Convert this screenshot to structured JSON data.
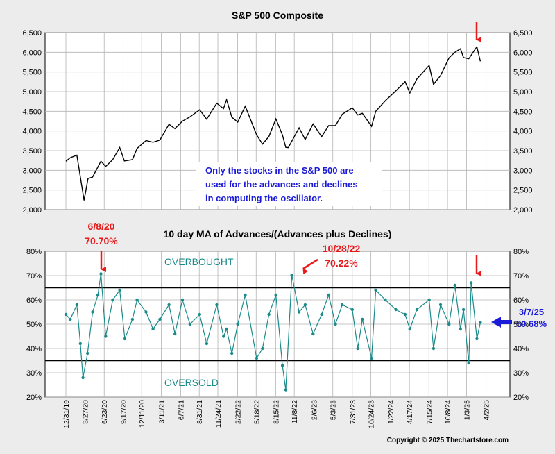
{
  "chart_data": [
    {
      "type": "line",
      "title": "S&P 500 Composite",
      "ylim": [
        2000,
        6500
      ],
      "yticks": [
        "2,000",
        "2,500",
        "3,000",
        "3,500",
        "4,000",
        "4,500",
        "5,000",
        "5,500",
        "6,000",
        "6,500"
      ],
      "ytick_values": [
        2000,
        2500,
        3000,
        3500,
        4000,
        4500,
        5000,
        5500,
        6000,
        6500
      ],
      "xlim": [
        "2019-12-31",
        "2025-03-31"
      ],
      "grid": true,
      "series": [
        {
          "x": [
            "2019-12-31",
            "2020-01-20",
            "2020-02-19",
            "2020-03-01",
            "2020-03-23",
            "2020-04-10",
            "2020-05-01",
            "2020-06-08",
            "2020-06-30",
            "2020-08-01",
            "2020-09-02",
            "2020-09-23",
            "2020-10-30",
            "2020-11-20",
            "2020-12-31",
            "2021-02-01",
            "2021-03-04",
            "2021-04-15",
            "2021-05-12",
            "2021-06-15",
            "2021-07-20",
            "2021-09-02",
            "2021-10-04",
            "2021-11-19",
            "2021-12-20",
            "2022-01-03",
            "2022-01-27",
            "2022-02-23",
            "2022-03-29",
            "2022-05-20",
            "2022-06-16",
            "2022-07-15",
            "2022-08-16",
            "2022-09-15",
            "2022-09-30",
            "2022-10-12",
            "2022-11-30",
            "2022-12-28",
            "2023-02-02",
            "2023-03-13",
            "2023-04-14",
            "2023-05-15",
            "2023-06-15",
            "2023-07-31",
            "2023-08-25",
            "2023-09-15",
            "2023-10-27",
            "2023-11-15",
            "2023-12-29",
            "2024-02-15",
            "2024-03-28",
            "2024-04-19",
            "2024-05-21",
            "2024-07-16",
            "2024-08-05",
            "2024-09-06",
            "2024-10-15",
            "2024-11-11",
            "2024-12-06",
            "2024-12-20",
            "2025-01-13",
            "2025-02-19",
            "2025-03-07"
          ],
          "y": [
            3230,
            3320,
            3386,
            3000,
            2237,
            2790,
            2830,
            3232,
            3100,
            3271,
            3580,
            3237,
            3270,
            3557,
            3756,
            3714,
            3768,
            4170,
            4060,
            4250,
            4360,
            4537,
            4300,
            4705,
            4568,
            4796,
            4350,
            4225,
            4630,
            3901,
            3666,
            3860,
            4305,
            3900,
            3585,
            3577,
            4080,
            3783,
            4179,
            3855,
            4137,
            4136,
            4425,
            4589,
            4405,
            4450,
            4117,
            4500,
            4770,
            5020,
            5254,
            4967,
            5321,
            5667,
            5186,
            5408,
            5860,
            6000,
            6090,
            5867,
            5836,
            6144,
            5770
          ]
        }
      ],
      "annotations": [
        "Only the stocks in the S&P 500 are",
        "used for the advances and declines",
        "in computing the oscillator."
      ]
    },
    {
      "type": "line",
      "title": "10 day MA of Advances/(Advances plus Declines)",
      "ylim": [
        20,
        80
      ],
      "yticks": [
        "20%",
        "30%",
        "40%",
        "50%",
        "60%",
        "70%",
        "80%"
      ],
      "ytick_values": [
        20,
        30,
        40,
        50,
        60,
        70,
        80
      ],
      "xlim": [
        "2019-12-31",
        "2025-03-31"
      ],
      "xtick_labels": [
        "12/31/19",
        "3/27/20",
        "6/23/20",
        "9/17/20",
        "12/11/20",
        "3/11/21",
        "6/7/21",
        "8/31/21",
        "11/24/21",
        "2/22/22",
        "5/18/22",
        "8/15/22",
        "11/8/22",
        "2/6/23",
        "5/3/23",
        "7/31/23",
        "10/24/23",
        "1/22/24",
        "4/17/24",
        "7/15/24",
        "10/8/24",
        "1/3/25",
        "4/2/25"
      ],
      "xtick_dates": [
        "2019-12-31",
        "2020-03-27",
        "2020-06-23",
        "2020-09-17",
        "2020-12-11",
        "2021-03-11",
        "2021-06-07",
        "2021-08-31",
        "2021-11-24",
        "2022-02-22",
        "2022-05-18",
        "2022-08-15",
        "2022-11-08",
        "2023-02-06",
        "2023-05-03",
        "2023-07-31",
        "2023-10-24",
        "2024-01-22",
        "2024-04-17",
        "2024-07-15",
        "2024-10-08",
        "2025-01-03",
        "2025-04-02"
      ],
      "reference_lines": [
        65,
        35
      ],
      "grid": true,
      "series": [
        {
          "x": [
            "2019-12-31",
            "2020-01-20",
            "2020-02-19",
            "2020-03-06",
            "2020-03-18",
            "2020-04-08",
            "2020-05-01",
            "2020-05-25",
            "2020-06-08",
            "2020-06-30",
            "2020-08-01",
            "2020-09-02",
            "2020-09-25",
            "2020-10-30",
            "2020-11-20",
            "2020-12-31",
            "2021-02-01",
            "2021-03-04",
            "2021-04-15",
            "2021-05-12",
            "2021-06-15",
            "2021-07-20",
            "2021-09-02",
            "2021-10-04",
            "2021-11-19",
            "2021-12-20",
            "2022-01-03",
            "2022-01-27",
            "2022-02-23",
            "2022-03-29",
            "2022-05-20",
            "2022-06-16",
            "2022-07-15",
            "2022-08-16",
            "2022-09-15",
            "2022-09-30",
            "2022-10-28",
            "2022-11-30",
            "2022-12-28",
            "2023-02-02",
            "2023-03-13",
            "2023-04-14",
            "2023-05-15",
            "2023-06-15",
            "2023-07-31",
            "2023-08-25",
            "2023-09-15",
            "2023-10-27",
            "2023-11-15",
            "2023-12-29",
            "2024-02-15",
            "2024-03-28",
            "2024-04-19",
            "2024-05-21",
            "2024-07-16",
            "2024-08-05",
            "2024-09-06",
            "2024-10-15",
            "2024-11-11",
            "2024-12-06",
            "2024-12-20",
            "2025-01-13",
            "2025-01-24",
            "2025-02-19",
            "2025-03-07"
          ],
          "y": [
            54,
            52,
            58,
            42,
            28,
            38,
            55,
            62,
            70.7,
            45,
            60,
            64,
            44,
            52,
            60,
            55,
            48,
            52,
            58,
            46,
            60,
            50,
            54,
            42,
            58,
            45,
            48,
            38,
            50,
            62,
            36,
            40,
            54,
            62,
            33,
            23,
            70.22,
            55,
            58,
            46,
            54,
            62,
            50,
            58,
            56,
            40,
            52,
            36,
            64,
            60,
            56,
            54,
            48,
            56,
            60,
            40,
            58,
            50,
            66,
            48,
            56,
            34,
            67,
            44,
            50.68
          ]
        }
      ],
      "annotations": [
        "OVERBOUGHT",
        "OVERSOLD"
      ]
    }
  ],
  "labels": {
    "callout1_date": "6/8/20",
    "callout1_value": "70.70%",
    "callout2_date": "10/28/22",
    "callout2_value": "70.22%",
    "callout3_date": "3/7/25",
    "callout3_value": "50.68%",
    "overbought": "OVERBOUGHT",
    "oversold": "OVERSOLD",
    "note_line1": "Only the stocks in the S&P 500 are",
    "note_line2": "used for the advances and declines",
    "note_line3": "in computing the oscillator.",
    "copyright": "Copyright © 2025 Thechartstore.com"
  },
  "colors": {
    "price_line": "#000000",
    "oscillator_line": "#1a8a8a",
    "callout_red": "#e8191b",
    "callout_blue": "#1a1ad9",
    "background": "#ececec"
  }
}
